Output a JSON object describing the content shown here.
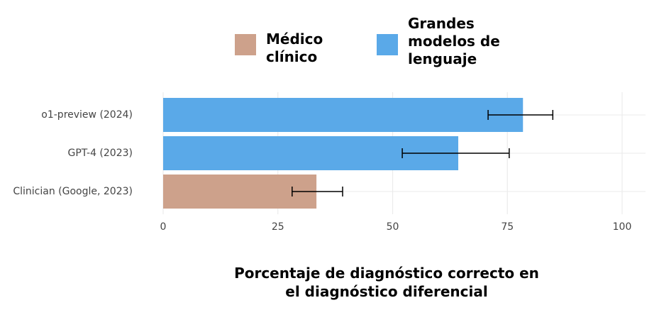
{
  "chart_data": {
    "type": "bar",
    "orientation": "horizontal",
    "x_label": "Porcentaje de diagnóstico correcto en el diagnóstico diferencial",
    "categories": [
      "o1-preview (2024)",
      "GPT-4 (2023)",
      "Clinician (Google, 2023)"
    ],
    "series": [
      {
        "name": "Médico clínico",
        "color": "#cda18b",
        "values": [
          null,
          null,
          33.4
        ],
        "ci_low": [
          null,
          null,
          28.1
        ],
        "ci_high": [
          null,
          null,
          39.1
        ]
      },
      {
        "name": "Grandes modelos de lenguaje",
        "color": "#5aa9e8",
        "values": [
          78.4,
          64.3,
          null
        ],
        "ci_low": [
          70.8,
          52.1,
          null
        ],
        "ci_high": [
          84.9,
          75.4,
          null
        ]
      }
    ],
    "xlim": [
      0,
      100
    ],
    "xticks": [
      0,
      25,
      50,
      75,
      100
    ],
    "grid": true
  }
}
